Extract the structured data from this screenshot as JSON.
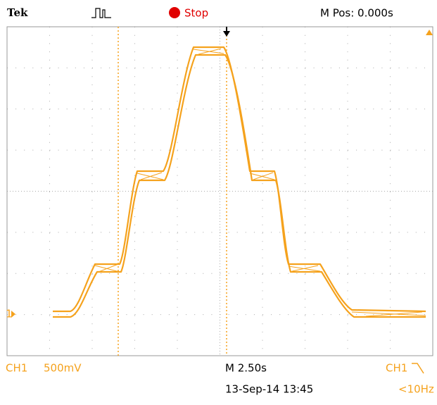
{
  "header": {
    "logo": "Tek",
    "status": "Stop",
    "position": "M Pos: 0.000s"
  },
  "channel_marker": "1",
  "footer": {
    "channel": "CH1",
    "scale": "500mV",
    "timebase": "M 2.50s",
    "trigger_source": "CH1",
    "date": "13-Sep-14 13:45",
    "frequency": "<10Hz"
  }
}
